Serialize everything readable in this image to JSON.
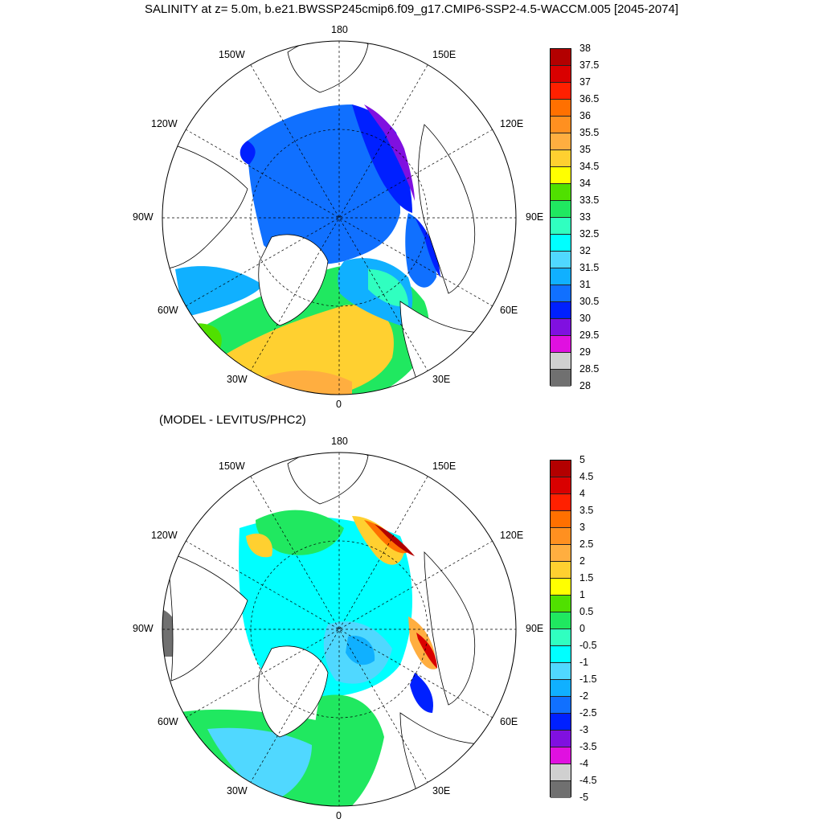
{
  "title": "SALINITY at z=   5.0m, b.e21.BWSSP245cmip6.f09_g17.CMIP6-SSP2-4.5-WACCM.005 [2045-2074]",
  "subtitle": "(MODEL - LEVITUS/PHC2)",
  "longitude_labels": {
    "top": "180",
    "bottom": "0",
    "left": "90W",
    "right": "90E",
    "upper_left_150": "150W",
    "upper_left_120": "120W",
    "lower_left_60": "60W",
    "lower_left_30": "30W",
    "upper_right_150": "150E",
    "upper_right_120": "120E",
    "lower_right_60": "60E",
    "lower_right_30": "30E"
  },
  "colorbar_top": {
    "labels": [
      "38",
      "37.5",
      "37",
      "36.5",
      "36",
      "35.5",
      "35",
      "34.5",
      "34",
      "33.5",
      "33",
      "32.5",
      "32",
      "31.5",
      "31",
      "30.5",
      "30",
      "29.5",
      "29",
      "28.5",
      "28"
    ],
    "colors": [
      "#b30000",
      "#d90000",
      "#ff2000",
      "#ff7000",
      "#ff9020",
      "#ffae40",
      "#ffd030",
      "#ffff00",
      "#50e000",
      "#20e860",
      "#30ffc0",
      "#00ffff",
      "#50d8ff",
      "#10b0ff",
      "#1070ff",
      "#0020ff",
      "#8010e0",
      "#e010e0",
      "#d0d0d0",
      "#707070"
    ]
  },
  "colorbar_bottom": {
    "labels": [
      "5",
      "4.5",
      "4",
      "3.5",
      "3",
      "2.5",
      "2",
      "1.5",
      "1",
      "0.5",
      "0",
      "-0.5",
      "-1",
      "-1.5",
      "-2",
      "-2.5",
      "-3",
      "-3.5",
      "-4",
      "-4.5",
      "-5"
    ],
    "colors": [
      "#b30000",
      "#d90000",
      "#ff2000",
      "#ff7000",
      "#ff9020",
      "#ffae40",
      "#ffd030",
      "#ffff00",
      "#50e000",
      "#20e860",
      "#30ffc0",
      "#00ffff",
      "#50d8ff",
      "#10b0ff",
      "#1070ff",
      "#0020ff",
      "#8010e0",
      "#e010e0",
      "#d0d0d0",
      "#707070"
    ]
  }
}
